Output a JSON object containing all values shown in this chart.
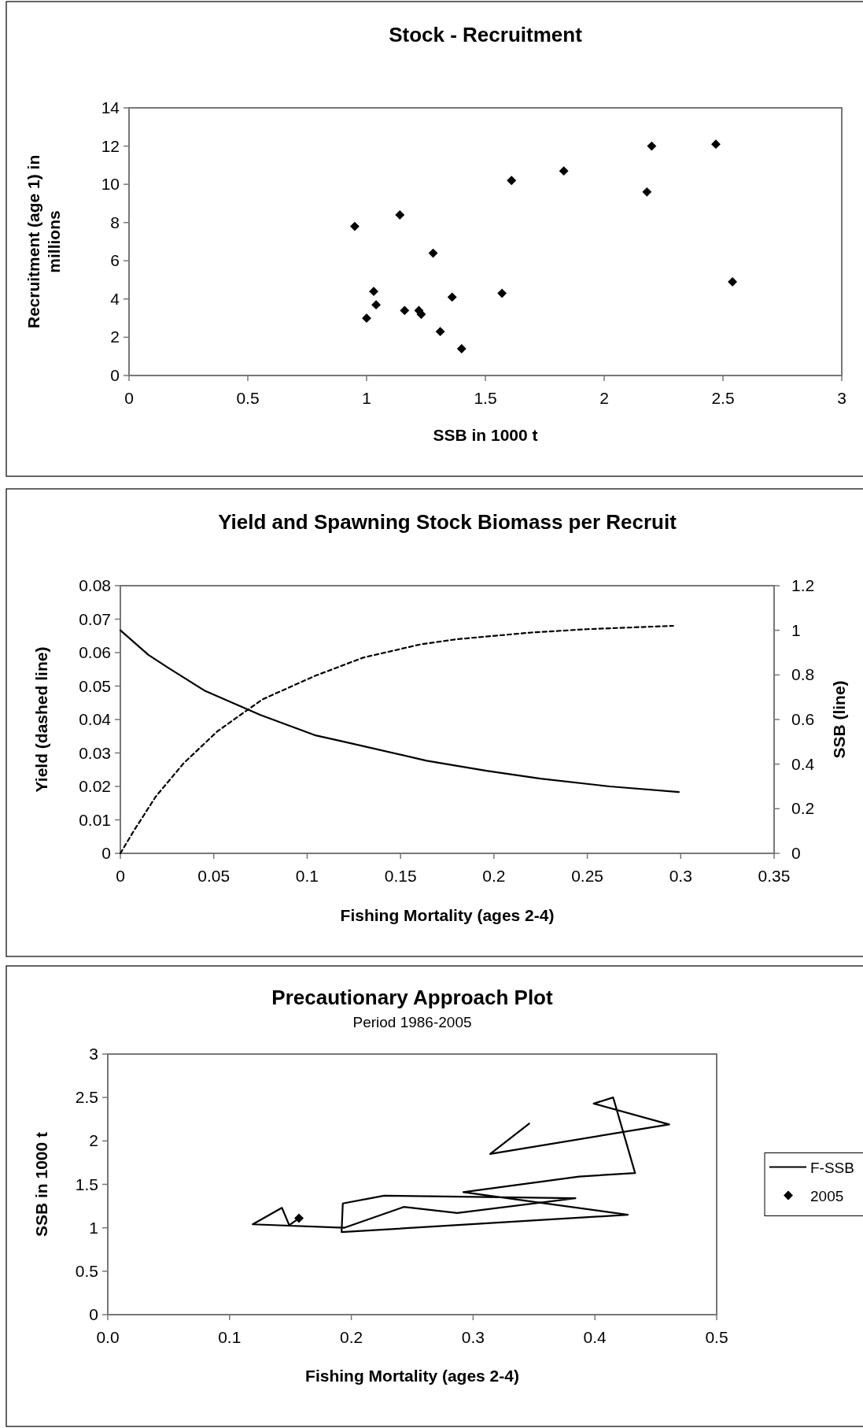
{
  "chart_data": [
    {
      "type": "scatter",
      "title": "Stock - Recruitment",
      "xlabel": "SSB in 1000 t",
      "ylabel": "Recruitment (age 1) in millions",
      "marker": "diamond",
      "grid": false,
      "legend": false,
      "xlim": [
        0,
        3
      ],
      "xticks": [
        0,
        0.5,
        1,
        1.5,
        2,
        2.5,
        3
      ],
      "ylim": [
        0,
        14
      ],
      "yticks": [
        0,
        2,
        4,
        6,
        8,
        10,
        12,
        14
      ],
      "series": [
        {
          "color": "#000000",
          "x": [
            0.95,
            1.14,
            1.03,
            1.04,
            1.0,
            1.16,
            1.28,
            1.22,
            1.23,
            1.31,
            1.36,
            1.4,
            1.57,
            1.61,
            1.83,
            2.18,
            2.2,
            2.47,
            2.54
          ],
          "values": [
            7.8,
            8.4,
            4.4,
            3.7,
            3.0,
            3.4,
            6.4,
            3.4,
            3.2,
            2.3,
            4.1,
            1.4,
            4.3,
            10.2,
            10.7,
            9.6,
            12.0,
            12.1,
            4.9
          ]
        }
      ]
    },
    {
      "type": "line",
      "title": "Yield and Spawning Stock Biomass per Recruit",
      "xlabel": "Fishing Mortality (ages 2-4)",
      "ylabel": "Yield (dashed line)",
      "y2label": "SSB (line)",
      "grid": false,
      "legend": false,
      "marker": "none",
      "xlim": [
        0,
        0.35
      ],
      "xticks": [
        0,
        0.05,
        0.1,
        0.15,
        0.2,
        0.25,
        0.3,
        0.35
      ],
      "ylim": [
        0,
        0.08
      ],
      "yticks": [
        0,
        0.01,
        0.02,
        0.03,
        0.04,
        0.05,
        0.06,
        0.07,
        0.08
      ],
      "y2lim": [
        0,
        1.2
      ],
      "y2ticks": [
        0,
        0.2,
        0.4,
        0.6,
        0.8,
        1,
        1.2
      ],
      "series": [
        {
          "color": "#000000",
          "line_style": "dashed",
          "x": [
            0,
            0.0075,
            0.019,
            0.034,
            0.052,
            0.076,
            0.104,
            0.13,
            0.161,
            0.18,
            0.22,
            0.25,
            0.296
          ],
          "values": [
            0,
            0.007,
            0.017,
            0.027,
            0.0365,
            0.046,
            0.053,
            0.0585,
            0.0625,
            0.064,
            0.066,
            0.067,
            0.068
          ]
        },
        {
          "color": "#000000",
          "line_style": "solid",
          "axis": "y2",
          "x": [
            0,
            0.015,
            0.026,
            0.045,
            0.075,
            0.104,
            0.12,
            0.164,
            0.196,
            0.225,
            0.262,
            0.299
          ],
          "values": [
            1.0,
            0.89,
            0.83,
            0.73,
            0.62,
            0.53,
            0.5,
            0.415,
            0.37,
            0.335,
            0.3,
            0.275
          ]
        }
      ]
    },
    {
      "type": "line",
      "title": "Precautionary Approach Plot",
      "subtitle": "Period 1986-2005",
      "xlabel": "Fishing Mortality (ages 2-4)",
      "ylabel": "SSB in 1000 t",
      "grid": false,
      "legend": "right",
      "xlim": [
        0,
        0.5
      ],
      "xticks": [
        {
          "value": 0,
          "label": "0.0"
        },
        {
          "value": 0.1,
          "label": "0.1"
        },
        {
          "value": 0.2,
          "label": "0.2"
        },
        {
          "value": 0.3,
          "label": "0.3"
        },
        {
          "value": 0.4,
          "label": "0.4"
        },
        {
          "value": 0.5,
          "label": "0.5"
        }
      ],
      "ylim": [
        0,
        3
      ],
      "yticks": [
        0,
        0.5,
        1,
        1.5,
        2,
        2.5,
        3
      ],
      "series": [
        {
          "name": "F-SSB",
          "color": "#000000",
          "marker": "none",
          "line_style": "solid",
          "x": [
            0.346,
            0.314,
            0.461,
            0.399,
            0.415,
            0.433,
            0.387,
            0.292,
            0.427,
            0.192,
            0.193,
            0.227,
            0.384,
            0.287,
            0.243,
            0.194,
            0.119,
            0.143,
            0.149,
            0.157
          ],
          "values": [
            2.2,
            1.85,
            2.19,
            2.43,
            2.5,
            1.63,
            1.59,
            1.41,
            1.15,
            0.95,
            1.28,
            1.37,
            1.34,
            1.17,
            1.24,
            1.0,
            1.04,
            1.23,
            1.03,
            1.11
          ]
        },
        {
          "name": "2005",
          "type": "scatter",
          "color": "#000000",
          "marker": "diamond",
          "x": [
            0.157
          ],
          "values": [
            1.11
          ]
        }
      ]
    }
  ]
}
